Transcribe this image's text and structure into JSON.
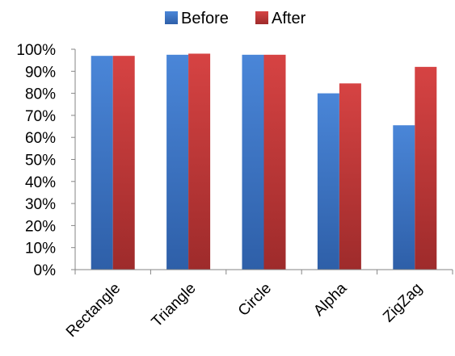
{
  "chart_data": {
    "type": "bar",
    "categories": [
      "Rectangle",
      "Triangle",
      "Circle",
      "Alpha",
      "ZigZag"
    ],
    "series": [
      {
        "name": "Before",
        "values": [
          97,
          97.5,
          97.5,
          80,
          65.5
        ],
        "color": "#3f76c8"
      },
      {
        "name": "After",
        "values": [
          97,
          98,
          97.5,
          84.5,
          92
        ],
        "color": "#c8393a"
      }
    ],
    "ylim": [
      0,
      100
    ],
    "y_ticks": [
      "0%",
      "10%",
      "20%",
      "30%",
      "40%",
      "50%",
      "60%",
      "70%",
      "80%",
      "90%",
      "100%"
    ],
    "grid": false,
    "legend_position": "top-center"
  }
}
